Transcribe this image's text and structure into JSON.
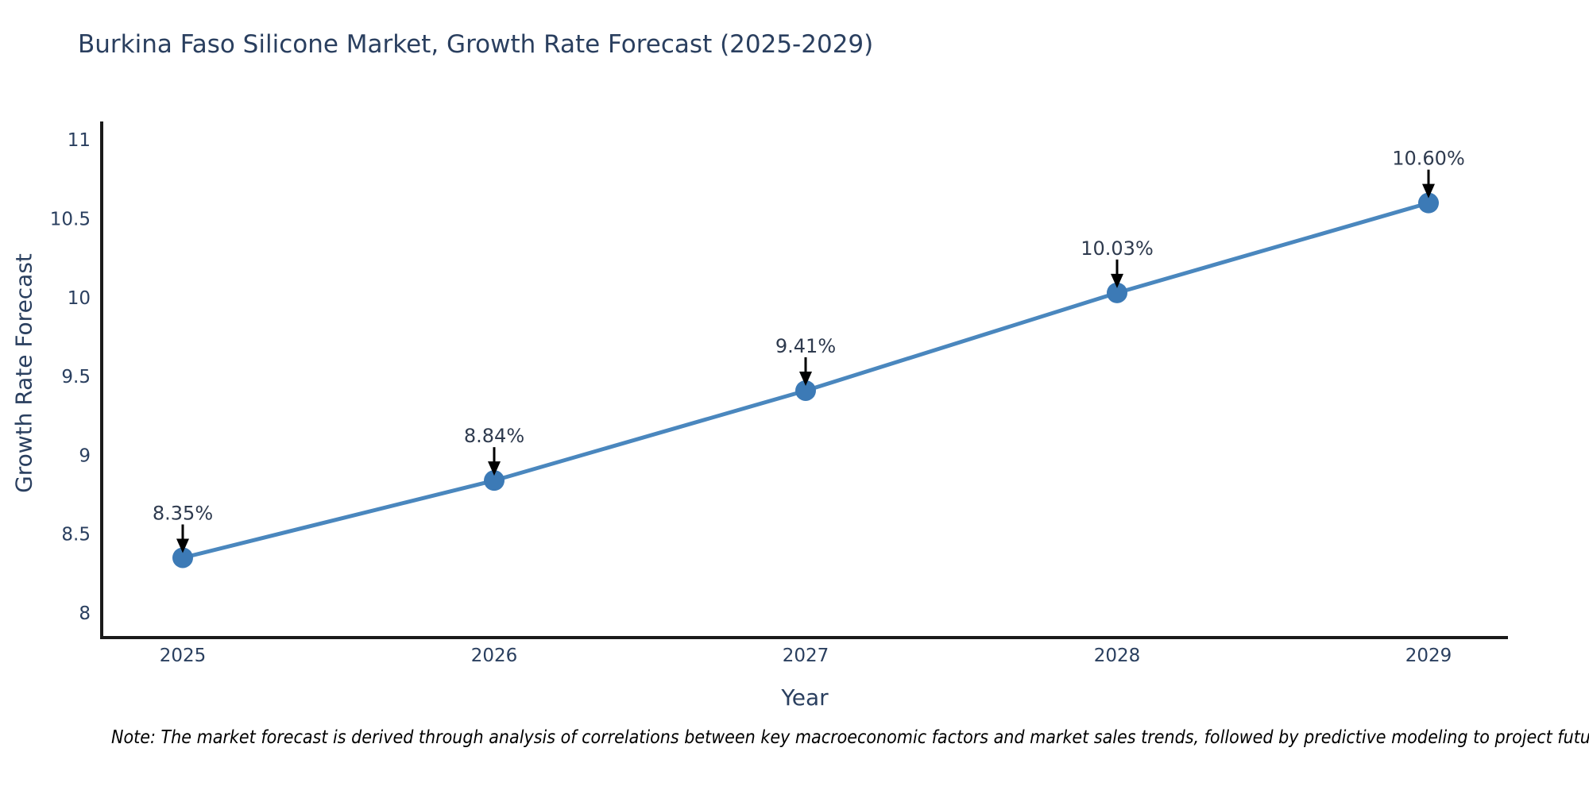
{
  "chart": {
    "title": "Burkina Faso Silicone Market, Growth Rate Forecast (2025-2029)",
    "xlabel": "Year",
    "ylabel": "Growth Rate Forecast"
  },
  "note": "Note: The market forecast is derived through analysis of correlations between key macroeconomic factors and market sales trends, followed by predictive modeling to project future sales",
  "colors": {
    "title_text": "#2a3f5f",
    "tick_text": "#2a3f5f",
    "annotation_text": "#2e3a4e",
    "axis_line": "#1a1a1a",
    "series_line": "#4a87be",
    "marker_fill": "#3c7ab6",
    "arrow": "#000000",
    "background": "#ffffff"
  },
  "chart_data": {
    "type": "line",
    "title": "Burkina Faso Silicone Market, Growth Rate Forecast (2025-2029)",
    "xlabel": "Year",
    "ylabel": "Growth Rate Forecast",
    "categories": [
      "2025",
      "2026",
      "2027",
      "2028",
      "2029"
    ],
    "series": [
      {
        "name": "Growth Rate Forecast",
        "values": [
          8.35,
          8.84,
          9.41,
          10.03,
          10.6
        ]
      }
    ],
    "point_labels": [
      "8.35%",
      "8.84%",
      "9.41%",
      "10.03%",
      "10.60%"
    ],
    "yticks": [
      8,
      8.5,
      9,
      9.5,
      10,
      10.5,
      11
    ],
    "ytick_labels": [
      "8",
      "8.5",
      "9",
      "9.5",
      "10",
      "10.5",
      "11"
    ],
    "ylim": [
      7.84,
      11.11
    ],
    "grid": false,
    "legend": false,
    "marker": "circle",
    "annotations_have_arrows": true
  }
}
